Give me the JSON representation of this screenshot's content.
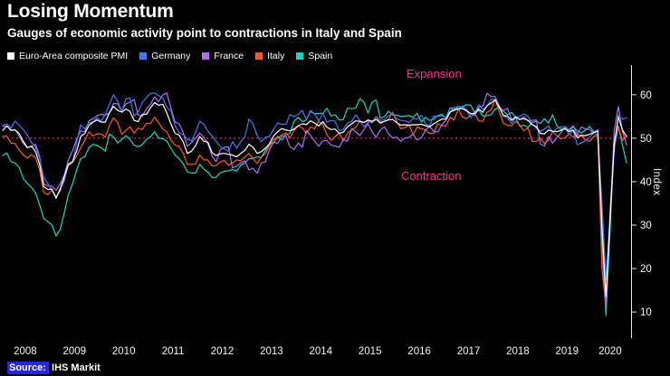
{
  "header": {
    "title": "Losing Momentum",
    "subtitle": "Gauges of economic activity point to contractions in Italy and Spain"
  },
  "annotations": {
    "expansion": "Expansion",
    "contraction": "Contraction"
  },
  "source": {
    "prefix": "Source:",
    "text": "IHS Markit"
  },
  "colors": {
    "background": "#000000",
    "accent_pink": "#ff2e92",
    "axis_text": "#f2f2f2",
    "axis_line": "#e8e8e8",
    "source_highlight": "#2525e0"
  },
  "chart_data": {
    "type": "line",
    "title": "Losing Momentum",
    "subtitle": "Gauges of economic activity point to contractions in Italy and Spain",
    "ylabel": "Index",
    "xlabel": "",
    "x_start": "2008-01",
    "x_end": "2020-09",
    "frequency": "monthly",
    "ylim": [
      4,
      66
    ],
    "yticks": [
      10,
      20,
      30,
      40,
      50,
      60
    ],
    "xticks": [
      2008,
      2009,
      2010,
      2011,
      2012,
      2013,
      2014,
      2015,
      2016,
      2017,
      2018,
      2019,
      2020
    ],
    "reference_line": 50,
    "legend_position": "top",
    "grid": false,
    "series": [
      {
        "name": "Euro-Area composite PMI",
        "color": "#ffffff",
        "values": [
          51.8,
          52.8,
          51.8,
          51.9,
          51.1,
          49.3,
          47.8,
          48.2,
          46.9,
          43.9,
          38.9,
          38.2,
          38.3,
          36.2,
          38.3,
          41.1,
          44.0,
          44.6,
          47.0,
          50.4,
          51.1,
          53.0,
          53.7,
          54.2,
          53.7,
          53.7,
          55.9,
          57.3,
          56.4,
          56.0,
          56.7,
          56.2,
          54.1,
          53.8,
          55.5,
          55.5,
          57.0,
          58.2,
          57.6,
          57.8,
          55.8,
          53.3,
          51.1,
          50.7,
          49.1,
          46.5,
          47.0,
          48.3,
          50.4,
          49.3,
          49.1,
          46.7,
          46.0,
          46.4,
          46.5,
          46.3,
          46.1,
          45.7,
          46.5,
          47.2,
          48.6,
          47.9,
          46.5,
          46.9,
          47.7,
          48.7,
          50.5,
          51.5,
          52.2,
          51.9,
          51.7,
          52.1,
          52.9,
          53.3,
          53.1,
          54.0,
          53.5,
          52.8,
          53.8,
          52.5,
          52.0,
          52.1,
          51.1,
          51.4,
          52.6,
          53.3,
          54.0,
          53.9,
          53.6,
          54.2,
          53.9,
          54.3,
          53.6,
          53.9,
          54.2,
          54.3,
          53.6,
          53.0,
          53.1,
          53.0,
          53.1,
          53.1,
          53.2,
          52.9,
          52.6,
          53.3,
          53.9,
          54.4,
          54.4,
          56.0,
          56.4,
          56.8,
          56.8,
          56.3,
          55.7,
          55.7,
          56.7,
          56.0,
          57.5,
          58.1,
          58.8,
          57.1,
          55.2,
          55.1,
          54.1,
          54.9,
          54.3,
          54.5,
          54.1,
          53.1,
          52.7,
          51.1,
          51.0,
          51.9,
          51.6,
          51.5,
          51.8,
          52.2,
          51.5,
          51.9,
          50.1,
          50.6,
          50.6,
          50.9,
          51.3,
          51.6,
          29.7,
          13.6,
          31.9,
          48.5,
          54.9,
          51.9,
          50.4
        ]
      },
      {
        "name": "Germany",
        "color": "#3d7af5",
        "values": [
          52.9,
          53.3,
          52.3,
          53.9,
          53.0,
          52.0,
          50.7,
          49.0,
          47.9,
          45.3,
          41.0,
          39.5,
          38.0,
          36.3,
          38.3,
          40.1,
          44.1,
          44.3,
          48.9,
          53.1,
          52.1,
          53.6,
          53.7,
          54.7,
          54.0,
          55.4,
          57.8,
          60.0,
          58.5,
          56.2,
          59.0,
          59.3,
          55.1,
          56.0,
          58.2,
          59.4,
          60.3,
          60.4,
          59.8,
          59.2,
          57.1,
          56.3,
          52.9,
          51.3,
          50.8,
          49.8,
          49.4,
          51.3,
          53.9,
          53.2,
          51.6,
          50.5,
          49.3,
          48.1,
          47.5,
          47.0,
          49.2,
          47.7,
          49.2,
          50.3,
          54.4,
          53.3,
          50.6,
          49.2,
          50.2,
          50.4,
          52.1,
          53.5,
          53.2,
          53.2,
          55.4,
          55.0,
          55.5,
          56.4,
          54.3,
          56.1,
          55.6,
          54.0,
          55.7,
          53.7,
          54.1,
          53.9,
          51.7,
          52.0,
          53.5,
          53.8,
          55.4,
          54.1,
          52.6,
          53.7,
          53.7,
          55.0,
          54.1,
          54.2,
          55.2,
          55.5,
          54.5,
          54.1,
          54.0,
          53.6,
          54.5,
          54.4,
          55.3,
          53.3,
          52.8,
          55.1,
          55.0,
          55.2,
          54.8,
          56.1,
          57.1,
          56.7,
          57.4,
          56.4,
          54.7,
          55.8,
          57.7,
          56.6,
          57.3,
          58.9,
          59.0,
          57.6,
          55.1,
          54.6,
          53.4,
          54.8,
          55.0,
          55.6,
          55.0,
          53.4,
          52.3,
          51.6,
          52.1,
          52.8,
          51.4,
          52.2,
          52.6,
          52.6,
          50.9,
          51.7,
          48.5,
          48.9,
          49.4,
          50.2,
          51.2,
          50.7,
          35.0,
          17.4,
          32.3,
          47.0,
          55.3,
          54.4,
          54.7
        ]
      },
      {
        "name": "France",
        "color": "#b06ef7",
        "values": [
          52.7,
          52.8,
          51.9,
          52.0,
          50.5,
          48.8,
          47.9,
          48.0,
          48.6,
          45.8,
          39.5,
          39.0,
          39.0,
          38.0,
          39.5,
          41.5,
          45.0,
          47.1,
          49.7,
          51.7,
          51.5,
          54.0,
          54.5,
          55.2,
          55.5,
          55.3,
          55.8,
          58.0,
          57.9,
          56.3,
          57.9,
          58.3,
          58.9,
          55.3,
          55.1,
          56.7,
          57.8,
          59.5,
          58.4,
          60.0,
          60.4,
          56.9,
          53.7,
          53.3,
          51.3,
          48.1,
          49.0,
          50.0,
          51.2,
          50.2,
          48.7,
          45.9,
          44.6,
          47.3,
          47.9,
          48.0,
          43.2,
          43.5,
          44.3,
          44.8,
          42.7,
          43.1,
          41.9,
          44.3,
          44.6,
          47.4,
          49.1,
          48.8,
          50.5,
          50.5,
          48.0,
          47.4,
          48.9,
          47.9,
          51.8,
          50.6,
          49.3,
          48.1,
          49.4,
          49.5,
          48.4,
          48.2,
          47.9,
          49.7,
          49.3,
          52.2,
          51.5,
          50.6,
          52.0,
          53.3,
          51.5,
          50.2,
          51.9,
          52.6,
          51.0,
          50.1,
          50.2,
          49.3,
          50.0,
          50.2,
          50.9,
          49.6,
          50.1,
          51.9,
          52.7,
          51.6,
          51.4,
          53.1,
          54.1,
          55.9,
          56.8,
          56.6,
          56.9,
          56.6,
          55.6,
          55.2,
          57.1,
          57.4,
          60.3,
          59.6,
          59.6,
          57.3,
          56.3,
          56.9,
          54.2,
          55.0,
          54.3,
          54.9,
          54.0,
          54.1,
          54.2,
          48.7,
          48.2,
          50.4,
          48.9,
          50.1,
          51.2,
          52.7,
          51.9,
          52.9,
          50.8,
          52.6,
          52.1,
          52.0,
          51.1,
          52.0,
          28.9,
          11.1,
          32.1,
          51.7,
          57.3,
          51.6,
          48.5
        ]
      },
      {
        "name": "Italy",
        "color": "#ff5a1d",
        "values": [
          50.4,
          50.5,
          48.9,
          48.8,
          47.3,
          46.2,
          45.4,
          46.2,
          45.5,
          42.6,
          37.5,
          37.0,
          38.0,
          36.5,
          37.9,
          40.8,
          43.7,
          44.4,
          45.9,
          47.8,
          49.5,
          51.5,
          50.5,
          51.0,
          51.0,
          50.2,
          53.0,
          54.7,
          53.6,
          50.9,
          51.8,
          52.6,
          51.2,
          52.3,
          52.0,
          53.4,
          53.4,
          54.8,
          53.6,
          52.1,
          51.5,
          49.5,
          48.4,
          48.1,
          46.5,
          43.9,
          44.0,
          44.1,
          46.1,
          45.0,
          45.0,
          43.6,
          43.7,
          44.5,
          44.9,
          43.8,
          44.3,
          45.0,
          44.8,
          45.7,
          46.5,
          45.3,
          44.2,
          45.6,
          46.5,
          48.2,
          49.7,
          50.0,
          50.8,
          51.2,
          50.1,
          51.8,
          52.8,
          52.4,
          51.1,
          52.6,
          52.2,
          53.9,
          53.1,
          50.8,
          49.5,
          50.4,
          51.2,
          49.4,
          51.2,
          51.9,
          52.5,
          53.9,
          53.7,
          54.0,
          53.5,
          55.0,
          53.3,
          53.9,
          54.3,
          56.0,
          53.8,
          52.2,
          52.4,
          53.1,
          50.8,
          52.6,
          52.2,
          51.9,
          51.1,
          51.1,
          53.4,
          52.9,
          52.8,
          54.8,
          54.2,
          56.8,
          54.9,
          54.5,
          55.4,
          55.8,
          54.0,
          53.9,
          56.0,
          56.5,
          59.0,
          56.0,
          53.5,
          52.9,
          52.9,
          53.9,
          53.0,
          51.7,
          52.4,
          49.3,
          49.3,
          50.0,
          48.8,
          49.6,
          51.5,
          50.6,
          49.9,
          50.1,
          51.0,
          50.3,
          50.6,
          50.8,
          49.6,
          49.3,
          50.4,
          50.7,
          20.2,
          10.9,
          33.9,
          47.6,
          52.5,
          49.5,
          50.4
        ]
      },
      {
        "name": "Spain",
        "color": "#14d8c4",
        "values": [
          46.0,
          46.6,
          44.6,
          44.3,
          43.3,
          40.7,
          39.6,
          38.7,
          37.4,
          34.6,
          31.5,
          30.8,
          30.0,
          27.5,
          29.0,
          32.8,
          37.0,
          39.5,
          42.6,
          45.3,
          45.7,
          47.8,
          48.6,
          48.3,
          47.8,
          47.0,
          51.0,
          50.3,
          48.9,
          49.7,
          50.6,
          49.7,
          48.4,
          48.0,
          48.5,
          49.7,
          50.3,
          51.5,
          50.0,
          49.9,
          49.3,
          47.7,
          46.1,
          45.3,
          44.1,
          42.2,
          42.0,
          42.0,
          44.0,
          42.9,
          42.2,
          41.0,
          41.0,
          42.0,
          42.4,
          42.5,
          42.8,
          42.4,
          43.8,
          44.3,
          45.3,
          45.3,
          45.7,
          45.6,
          47.2,
          48.7,
          48.9,
          50.4,
          49.6,
          50.9,
          51.1,
          53.9,
          54.8,
          53.8,
          54.2,
          56.3,
          55.6,
          55.7,
          55.7,
          56.9,
          55.1,
          55.4,
          54.2,
          54.3,
          56.9,
          56.8,
          56.9,
          59.1,
          58.3,
          55.8,
          58.3,
          58.8,
          54.6,
          55.0,
          56.2,
          55.3,
          55.3,
          55.0,
          55.1,
          55.2,
          54.8,
          55.7,
          53.7,
          54.8,
          54.1,
          54.4,
          55.2,
          55.5,
          54.7,
          57.0,
          56.8,
          57.3,
          57.2,
          57.7,
          57.6,
          55.9,
          56.4,
          55.1,
          55.2,
          55.4,
          56.7,
          57.1,
          56.2,
          55.4,
          55.9,
          54.8,
          52.7,
          53.0,
          52.5,
          53.7,
          53.9,
          53.4,
          54.5,
          53.5,
          55.4,
          52.9,
          52.1,
          52.1,
          51.7,
          52.6,
          51.7,
          51.2,
          51.9,
          52.7,
          51.5,
          51.8,
          26.7,
          9.2,
          29.2,
          49.7,
          52.8,
          48.4,
          44.3
        ]
      }
    ]
  }
}
